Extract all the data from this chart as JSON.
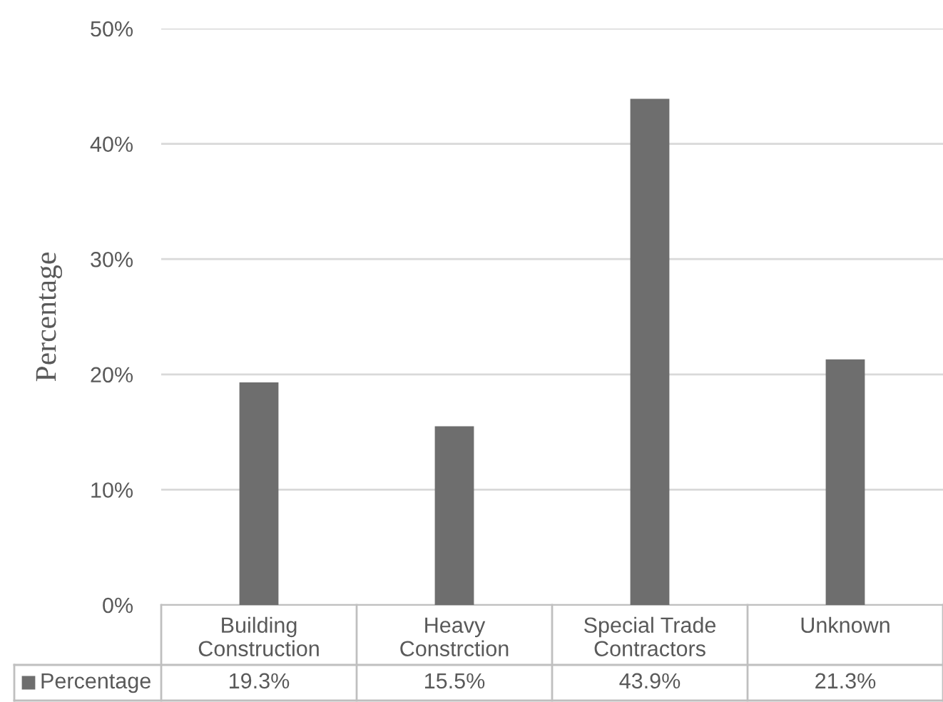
{
  "chart_data": {
    "type": "bar",
    "categories": [
      "Building\nConstruction",
      "Heavy\nConstrction",
      "Special Trade\nContractors",
      "Unknown"
    ],
    "series": [
      {
        "name": "Percentage",
        "color": "#6e6e6e",
        "values": [
          19.3,
          15.5,
          43.9,
          21.3
        ],
        "value_labels": [
          "19.3%",
          "15.5%",
          "43.9%",
          "21.3%"
        ]
      }
    ],
    "ylabel": "Percentage",
    "ylim": [
      0,
      50
    ],
    "yticks": [
      {
        "value": 0,
        "label": "0%"
      },
      {
        "value": 10,
        "label": "10%"
      },
      {
        "value": 20,
        "label": "20%"
      },
      {
        "value": 30,
        "label": "30%"
      },
      {
        "value": 40,
        "label": "40%"
      },
      {
        "value": 50,
        "label": "50%"
      }
    ],
    "grid": "y",
    "legend": "bottom"
  }
}
